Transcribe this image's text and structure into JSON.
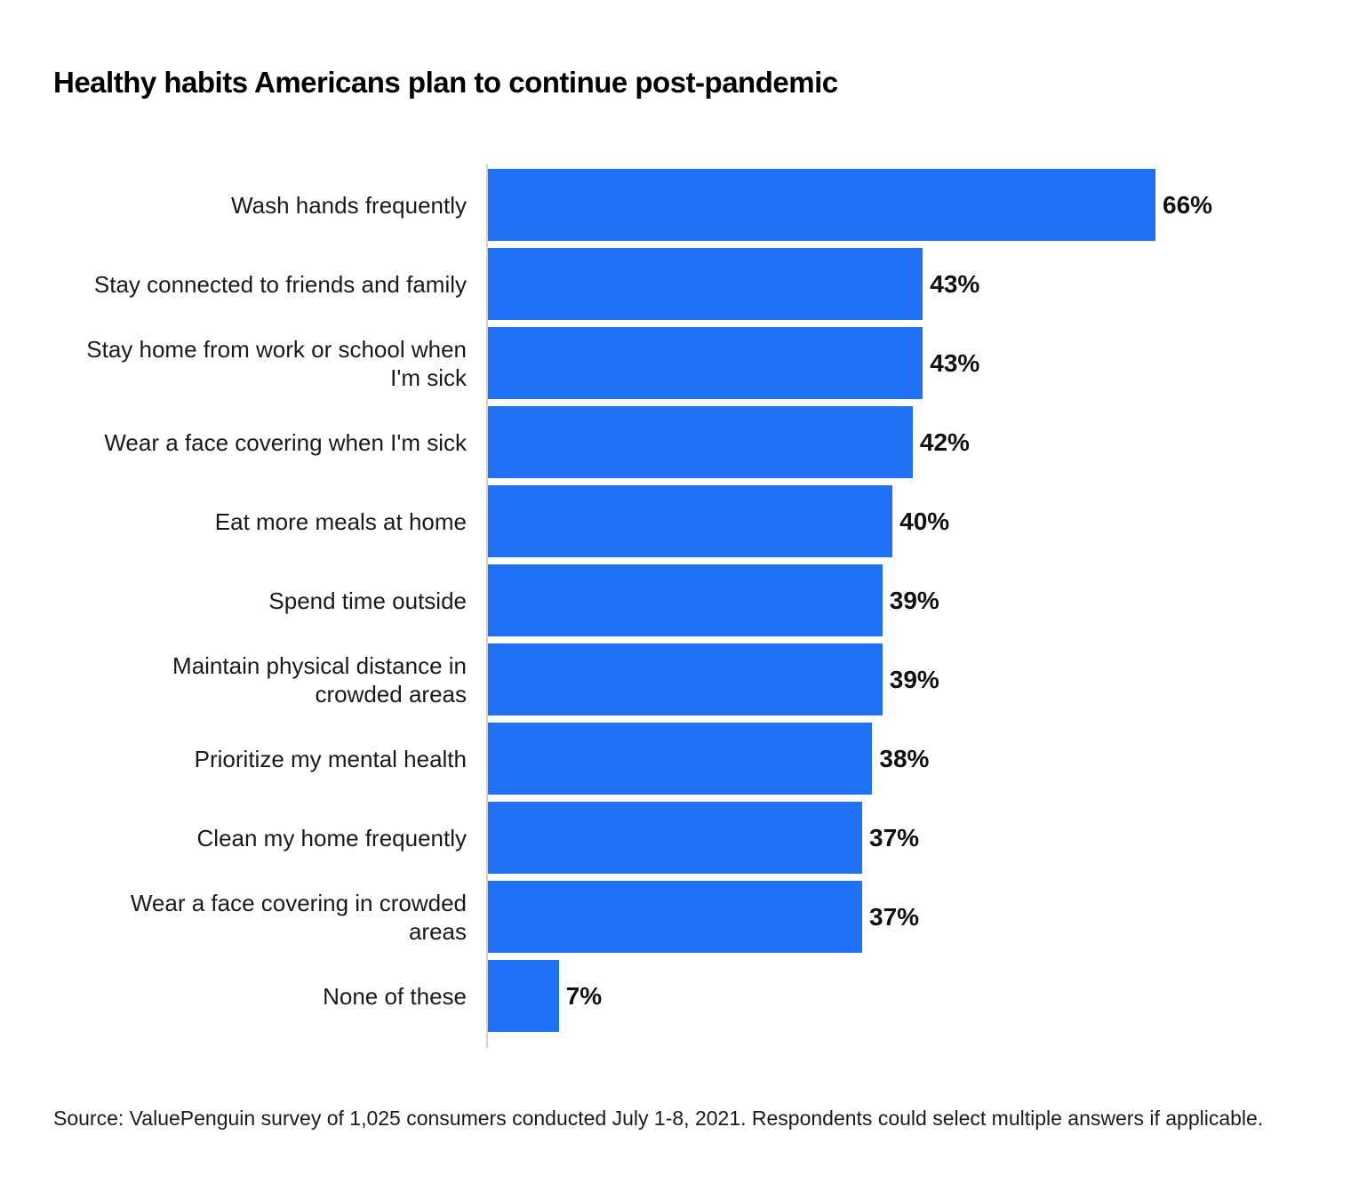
{
  "title": "Healthy habits Americans plan to continue post-pandemic",
  "source_note": "Source: ValuePenguin survey of 1,025 consumers conducted July 1-8, 2021. Respondents could select multiple answers if applicable.",
  "colors": {
    "bar": "#2171f5",
    "axis_line": "#d0d0d0",
    "title_text": "#000000",
    "label_text": "#1a1a1a"
  },
  "chart_data": {
    "type": "bar",
    "orientation": "horizontal",
    "title": "Healthy habits Americans plan to continue post-pandemic",
    "categories": [
      "Wash hands frequently",
      "Stay connected to friends and family",
      "Stay home from work or school when I'm sick",
      "Wear a face covering when I'm sick",
      "Eat more meals at home",
      "Spend time outside",
      "Maintain physical distance in crowded areas",
      "Prioritize my mental health",
      "Clean my home frequently",
      "Wear a face covering in crowded areas",
      "None of these"
    ],
    "categories_display": [
      "Wash hands frequently",
      "Stay connected to friends and family",
      "Stay home from work or school when\nI'm sick",
      "Wear a face covering when I'm sick",
      "Eat more meals at home",
      "Spend time outside",
      "Maintain physical distance in\ncrowded areas",
      "Prioritize my mental health",
      "Clean my home frequently",
      "Wear a face covering in crowded\nareas",
      "None of these"
    ],
    "values": [
      66,
      43,
      43,
      42,
      40,
      39,
      39,
      38,
      37,
      37,
      7
    ],
    "data_labels": [
      "66%",
      "43%",
      "43%",
      "42%",
      "40%",
      "39%",
      "39%",
      "38%",
      "37%",
      "37%",
      "7%"
    ],
    "value_unit": "%",
    "xlim": [
      0,
      66
    ],
    "gridlines": false,
    "axis_tick_labels_shown": false,
    "legend": false,
    "bar_color": "#2171f5"
  }
}
